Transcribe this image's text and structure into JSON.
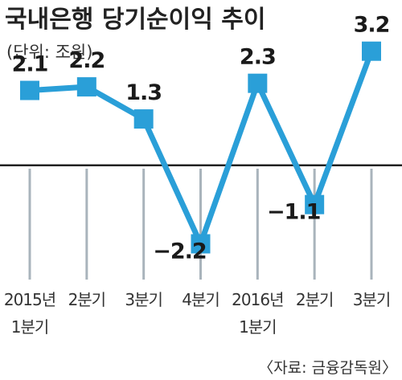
{
  "title": "국내은행 당기순이익 추이",
  "unit": "(단위: 조원)",
  "source": "〈자료: 금융감독원〉",
  "colors": {
    "series": "#2a9fd8",
    "grid": "#a9b4bc",
    "baseline": "#222222",
    "text": "#222222"
  },
  "chart_data": {
    "type": "line",
    "categories": [
      [
        "2015년",
        "1분기"
      ],
      [
        "2분기"
      ],
      [
        "3분기"
      ],
      [
        "4분기"
      ],
      [
        "2016년",
        "1분기"
      ],
      [
        "2분기"
      ],
      [
        "3분기"
      ]
    ],
    "series": [
      {
        "values": [
          2.1,
          2.2,
          1.3,
          -2.2,
          2.3,
          -1.1,
          3.2
        ],
        "labels": [
          "2.1",
          "2.2",
          "1.3",
          "−2.2",
          "2.3",
          "−1.1",
          "3.2"
        ]
      }
    ],
    "ylim": [
      -3.0,
      4.5
    ],
    "baseline": 0,
    "marker": "square",
    "vertical_grid": true,
    "horizontal_grid": false
  }
}
